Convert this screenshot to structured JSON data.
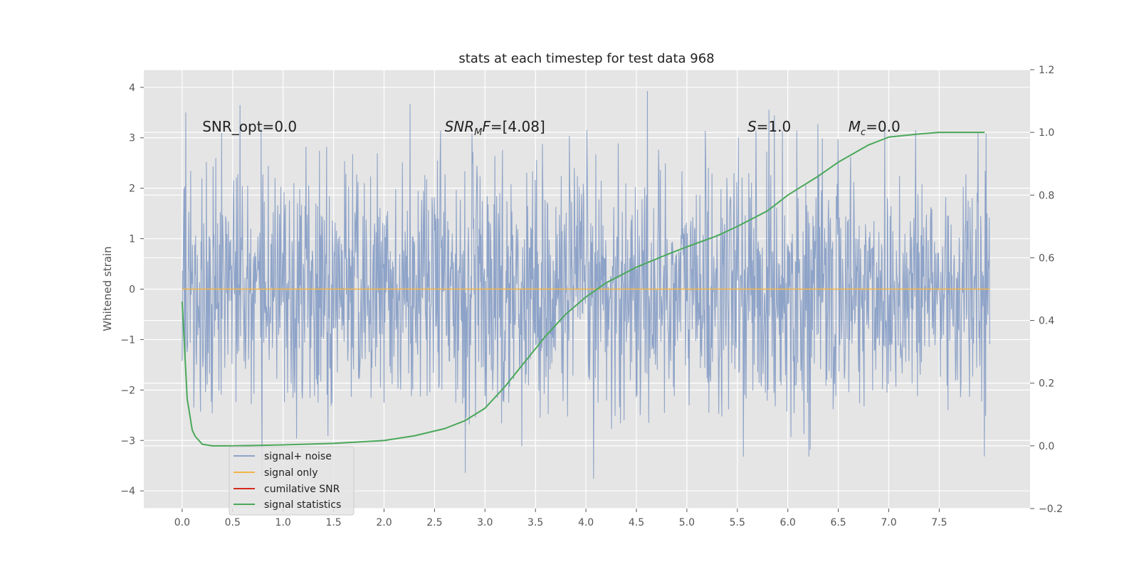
{
  "chart_data": {
    "type": "line",
    "title": "stats at each timestep for test data 968",
    "ylabel": "Whitened strain",
    "xlim": [
      -0.38,
      8.4
    ],
    "ylim": [
      -4.35,
      4.35
    ],
    "y2lim": [
      -0.2,
      1.2
    ],
    "x_ticks": [
      0.0,
      0.5,
      1.0,
      1.5,
      2.0,
      2.5,
      3.0,
      3.5,
      4.0,
      4.5,
      5.0,
      5.5,
      6.0,
      6.5,
      7.0,
      7.5
    ],
    "x_tick_labels": [
      "0.0",
      "0.5",
      "1.0",
      "1.5",
      "2.0",
      "2.5",
      "3.0",
      "3.5",
      "4.0",
      "4.5",
      "5.0",
      "5.5",
      "6.0",
      "6.5",
      "7.0",
      "7.5"
    ],
    "y_ticks": [
      -4,
      -3,
      -2,
      -1,
      0,
      1,
      2,
      3,
      4
    ],
    "y_tick_labels": [
      "−4",
      "−3",
      "−2",
      "−1",
      "0",
      "1",
      "2",
      "3",
      "4"
    ],
    "y2_ticks": [
      -0.2,
      0.0,
      0.2,
      0.4,
      0.6,
      0.8,
      1.0,
      1.2
    ],
    "y2_tick_labels": [
      "−0.2",
      "0.0",
      "0.2",
      "0.4",
      "0.6",
      "0.8",
      "1.0",
      "1.2"
    ],
    "grid": true,
    "legend_placement": "lower-left",
    "noise": {
      "t_start": 0.0,
      "t_end": 8.0,
      "std": 1.25,
      "envelope_upper": 3.95,
      "envelope_lower": -3.98
    },
    "series": [
      {
        "name": "signal+ noise",
        "axis": "left",
        "color": "#8ea3c8",
        "kind": "noise"
      },
      {
        "name": "signal only",
        "axis": "left",
        "color": "#f2b545",
        "x": [
          0.0,
          8.0
        ],
        "y": [
          0.0,
          0.0
        ]
      },
      {
        "name": "cumilative SNR",
        "axis": "left",
        "color": "#d62a1e",
        "x": [],
        "y": []
      },
      {
        "name": "signal statistics",
        "axis": "right",
        "color": "#4aa85a",
        "x": [
          0.0,
          0.05,
          0.1,
          0.13,
          0.2,
          0.3,
          0.5,
          1.0,
          1.5,
          2.0,
          2.3,
          2.6,
          2.8,
          3.0,
          3.2,
          3.4,
          3.6,
          3.8,
          4.0,
          4.2,
          4.5,
          4.8,
          5.0,
          5.3,
          5.5,
          5.8,
          6.0,
          6.3,
          6.5,
          6.8,
          7.0,
          7.3,
          7.5,
          7.8,
          7.95
        ],
        "y": [
          0.46,
          0.15,
          0.05,
          0.03,
          0.005,
          0.0,
          0.0,
          0.003,
          0.008,
          0.017,
          0.032,
          0.055,
          0.08,
          0.12,
          0.19,
          0.27,
          0.35,
          0.42,
          0.475,
          0.52,
          0.57,
          0.61,
          0.635,
          0.67,
          0.7,
          0.75,
          0.8,
          0.86,
          0.905,
          0.96,
          0.985,
          0.995,
          1.0,
          1.0,
          1.0
        ]
      }
    ],
    "annotations": [
      {
        "id": "snr-opt",
        "text": "SNR_opt=0.0",
        "x": 0.2,
        "y": 3.12
      },
      {
        "id": "snr-mf",
        "text": "SNR_MF=[4.08]",
        "x": 2.6,
        "y": 3.12
      },
      {
        "id": "s-val",
        "text": "S=1.0",
        "x": 5.6,
        "y": 3.12
      },
      {
        "id": "mc-val",
        "text": "M_c=0.0",
        "x": 6.6,
        "y": 3.12
      }
    ],
    "colors": {
      "plot_background": "#e5e5e5",
      "grid": "#ffffff",
      "legend_background": "#e5e5e5",
      "legend_border": "#cccccc"
    }
  }
}
